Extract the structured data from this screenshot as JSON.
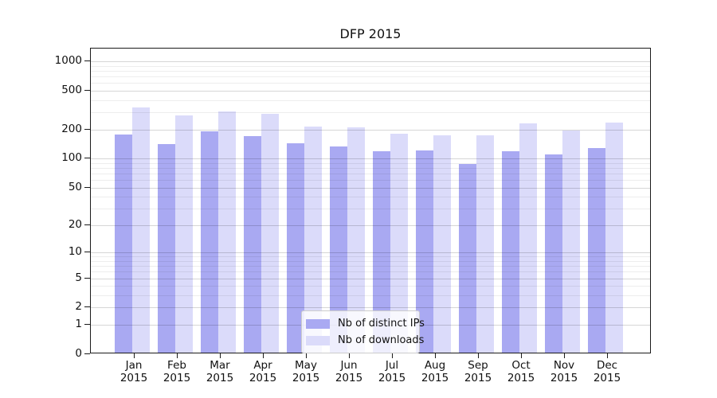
{
  "chart_data": {
    "type": "bar",
    "title": "DFP 2015",
    "categories": [
      "Jan 2015",
      "Feb 2015",
      "Mar 2015",
      "Apr 2015",
      "May 2015",
      "Jun 2015",
      "Jul 2015",
      "Aug 2015",
      "Sep 2015",
      "Oct 2015",
      "Nov 2015",
      "Dec 2015"
    ],
    "series": [
      {
        "name": "Nb of distinct IPs",
        "color": "#a9a9f2",
        "values": [
          175,
          139,
          189,
          166,
          140,
          132,
          116,
          119,
          87,
          117,
          109,
          125
        ]
      },
      {
        "name": "Nb of downloads",
        "color": "#dbdbfa",
        "values": [
          332,
          274,
          301,
          281,
          210,
          206,
          178,
          170,
          171,
          227,
          191,
          230
        ]
      }
    ],
    "xlabel": "",
    "ylabel": "",
    "y_axis": {
      "scale": "log1p",
      "tick_values": [
        1000,
        500,
        200,
        100,
        50,
        20,
        10,
        5,
        2,
        1,
        0
      ],
      "tick_labels": [
        "1000",
        "500",
        "200",
        "100",
        "50",
        "20",
        "10",
        "5",
        "2",
        "1",
        "0"
      ],
      "minor_gridline_values": [
        3,
        4,
        6,
        7,
        8,
        9,
        30,
        40,
        60,
        70,
        80,
        90,
        300,
        400,
        600,
        700,
        800,
        900
      ],
      "ylim": [
        0,
        1350
      ]
    },
    "grid": "on",
    "legend_position": "bottom-center",
    "colors": {
      "axis": "#1a1a1a",
      "text": "#111111",
      "major_grid": "#d9d9d9",
      "minor_grid": "#eeeeee",
      "legend_border": "#cccccc"
    }
  }
}
